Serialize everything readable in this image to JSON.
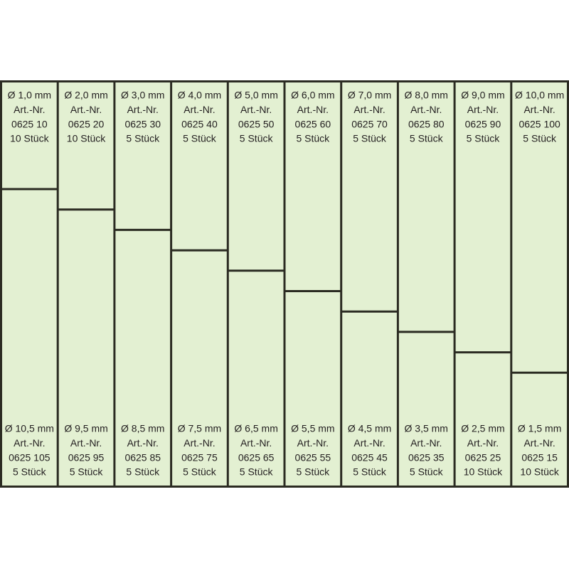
{
  "columns": [
    {
      "top": {
        "size": "Ø 1,0 mm",
        "label": "Art.-Nr.",
        "number": "0625 10",
        "quantity": "10 Stück"
      },
      "bottom": {
        "size": "Ø 10,5 mm",
        "label": "Art.-Nr.",
        "number": "0625 105",
        "quantity": "5 Stück"
      }
    },
    {
      "top": {
        "size": "Ø 2,0 mm",
        "label": "Art.-Nr.",
        "number": "0625 20",
        "quantity": "10 Stück"
      },
      "bottom": {
        "size": "Ø 9,5 mm",
        "label": "Art.-Nr.",
        "number": "0625 95",
        "quantity": "5 Stück"
      }
    },
    {
      "top": {
        "size": "Ø 3,0 mm",
        "label": "Art.-Nr.",
        "number": "0625 30",
        "quantity": "5 Stück"
      },
      "bottom": {
        "size": "Ø 8,5 mm",
        "label": "Art.-Nr.",
        "number": "0625 85",
        "quantity": "5 Stück"
      }
    },
    {
      "top": {
        "size": "Ø 4,0 mm",
        "label": "Art.-Nr.",
        "number": "0625 40",
        "quantity": "5 Stück"
      },
      "bottom": {
        "size": "Ø 7,5 mm",
        "label": "Art.-Nr.",
        "number": "0625 75",
        "quantity": "5 Stück"
      }
    },
    {
      "top": {
        "size": "Ø 5,0 mm",
        "label": "Art.-Nr.",
        "number": "0625 50",
        "quantity": "5 Stück"
      },
      "bottom": {
        "size": "Ø 6,5 mm",
        "label": "Art.-Nr.",
        "number": "0625 65",
        "quantity": "5 Stück"
      }
    },
    {
      "top": {
        "size": "Ø 6,0 mm",
        "label": "Art.-Nr.",
        "number": "0625 60",
        "quantity": "5 Stück"
      },
      "bottom": {
        "size": "Ø 5,5 mm",
        "label": "Art.-Nr.",
        "number": "0625 55",
        "quantity": "5 Stück"
      }
    },
    {
      "top": {
        "size": "Ø 7,0 mm",
        "label": "Art.-Nr.",
        "number": "0625 70",
        "quantity": "5 Stück"
      },
      "bottom": {
        "size": "Ø 4,5 mm",
        "label": "Art.-Nr.",
        "number": "0625 45",
        "quantity": "5 Stück"
      }
    },
    {
      "top": {
        "size": "Ø 8,0 mm",
        "label": "Art.-Nr.",
        "number": "0625 80",
        "quantity": "5 Stück"
      },
      "bottom": {
        "size": "Ø 3,5 mm",
        "label": "Art.-Nr.",
        "number": "0625 35",
        "quantity": "5 Stück"
      }
    },
    {
      "top": {
        "size": "Ø 9,0 mm",
        "label": "Art.-Nr.",
        "number": "0625 90",
        "quantity": "5 Stück"
      },
      "bottom": {
        "size": "Ø 2,5 mm",
        "label": "Art.-Nr.",
        "number": "0625 25",
        "quantity": "10 Stück"
      }
    },
    {
      "top": {
        "size": "Ø 10,0 mm",
        "label": "Art.-Nr.",
        "number": "0625 100",
        "quantity": "5 Stück"
      },
      "bottom": {
        "size": "Ø 1,5 mm",
        "label": "Art.-Nr.",
        "number": "0625 15",
        "quantity": "10 Stück"
      }
    }
  ]
}
